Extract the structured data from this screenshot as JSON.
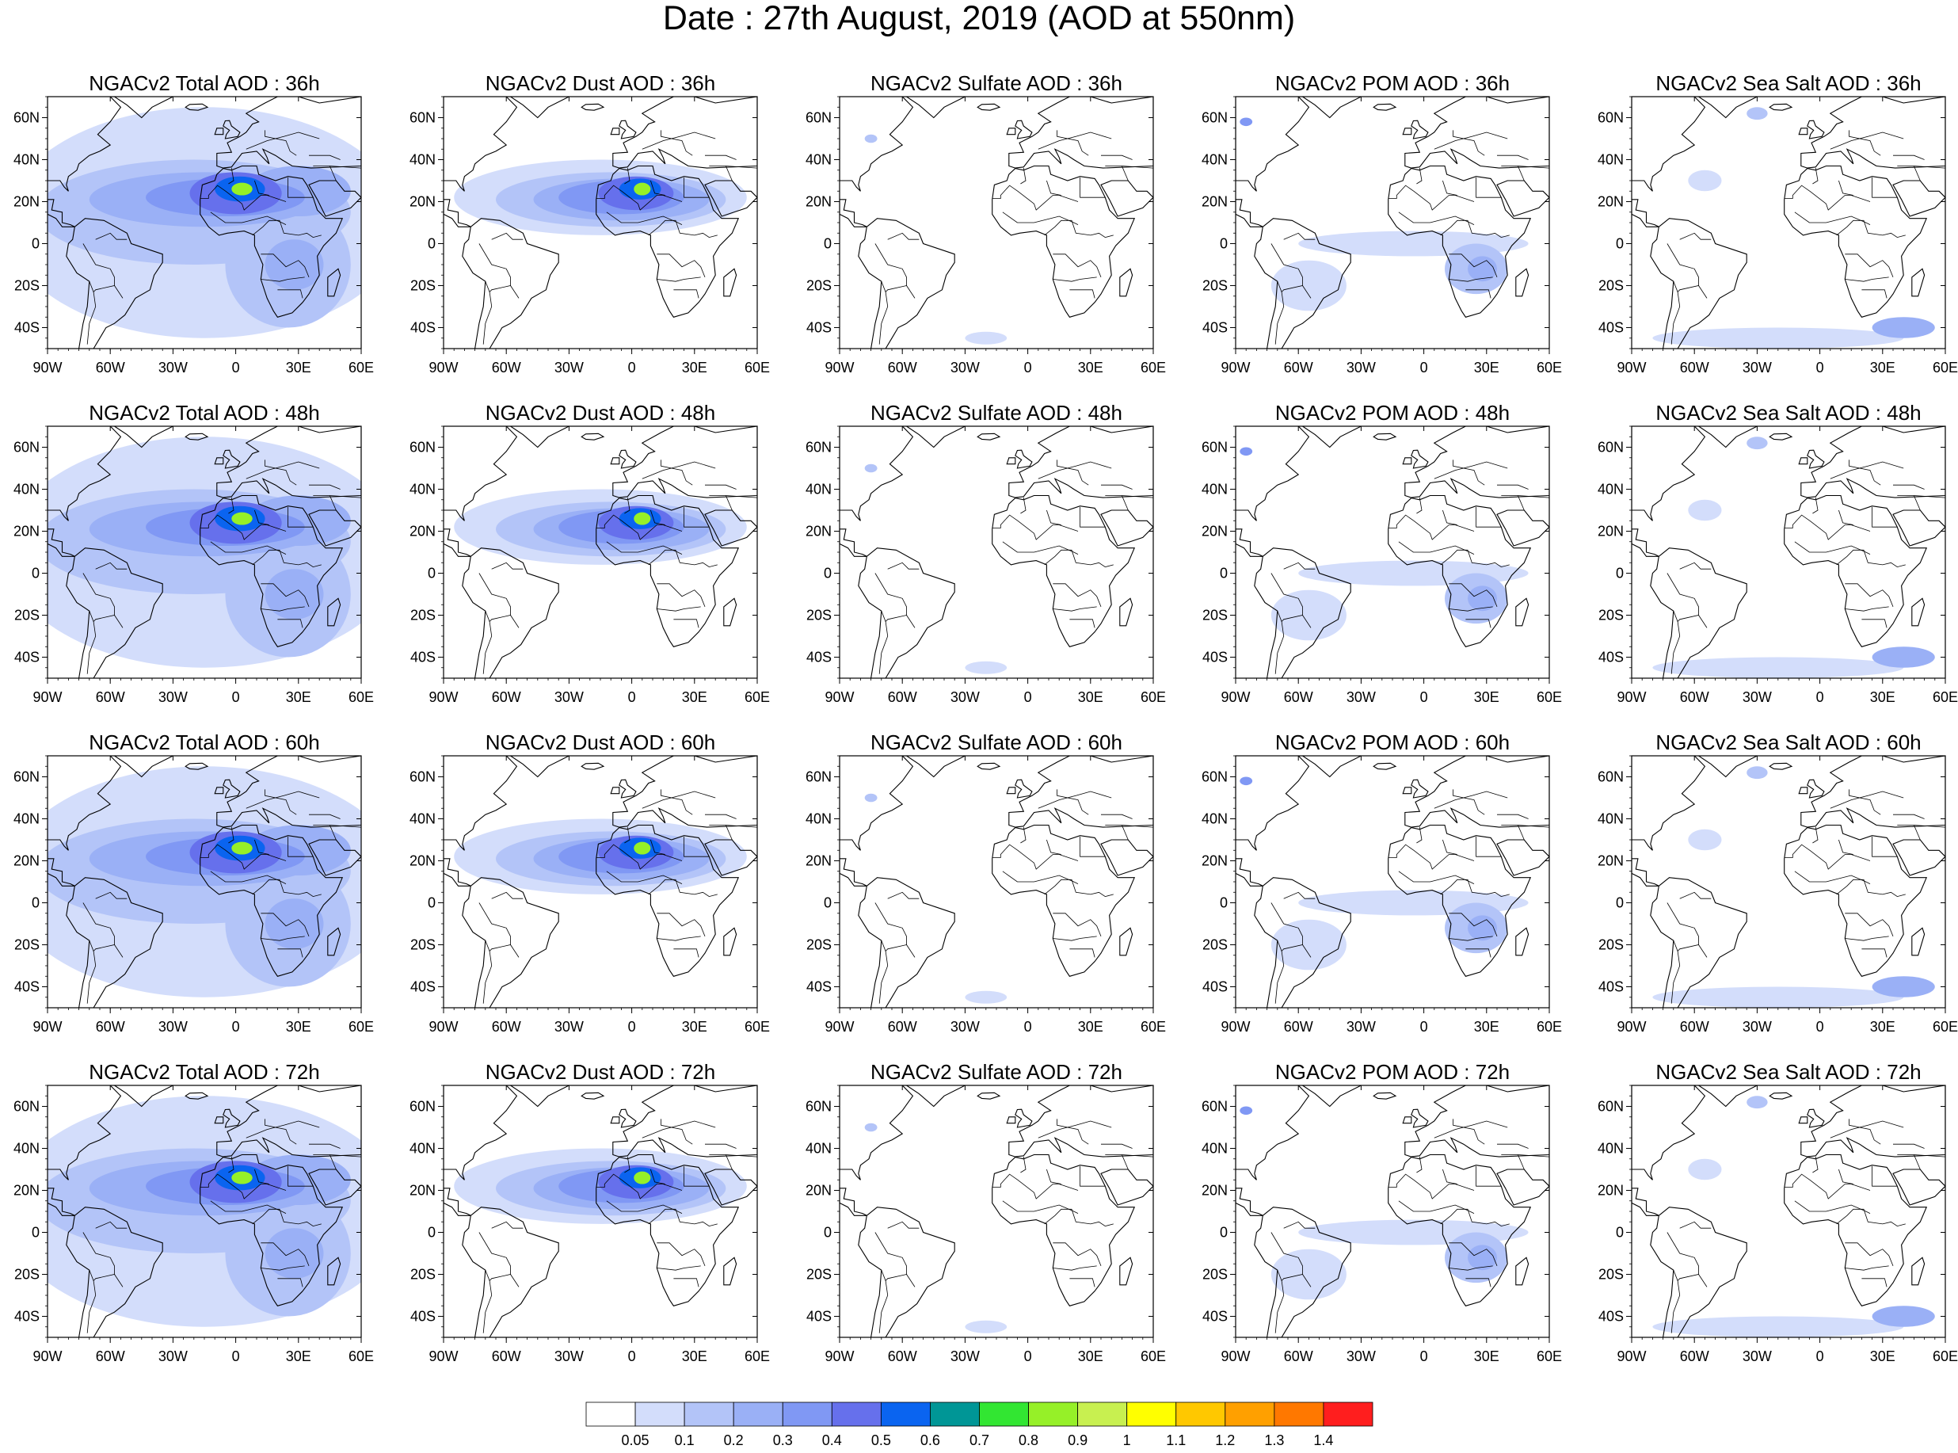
{
  "title": "Date : 27th August, 2019 (AOD at 550nm)",
  "rows": [
    {
      "panels": [
        {
          "title": "NGACv2 Total AOD : 36h",
          "species": "total",
          "lead_h": 36
        },
        {
          "title": "NGACv2 Dust AOD : 36h",
          "species": "dust",
          "lead_h": 36
        },
        {
          "title": "NGACv2 Sulfate AOD : 36h",
          "species": "sulfate",
          "lead_h": 36
        },
        {
          "title": "NGACv2 POM AOD : 36h",
          "species": "pom",
          "lead_h": 36
        },
        {
          "title": "NGACv2 Sea Salt AOD : 36h",
          "species": "seasalt",
          "lead_h": 36
        }
      ]
    },
    {
      "panels": [
        {
          "title": "NGACv2 Total AOD : 48h",
          "species": "total",
          "lead_h": 48
        },
        {
          "title": "NGACv2 Dust AOD : 48h",
          "species": "dust",
          "lead_h": 48
        },
        {
          "title": "NGACv2 Sulfate AOD : 48h",
          "species": "sulfate",
          "lead_h": 48
        },
        {
          "title": "NGACv2 POM AOD : 48h",
          "species": "pom",
          "lead_h": 48
        },
        {
          "title": "NGACv2 Sea Salt AOD : 48h",
          "species": "seasalt",
          "lead_h": 48
        }
      ]
    },
    {
      "panels": [
        {
          "title": "NGACv2 Total AOD : 60h",
          "species": "total",
          "lead_h": 60
        },
        {
          "title": "NGACv2 Dust AOD : 60h",
          "species": "dust",
          "lead_h": 60
        },
        {
          "title": "NGACv2 Sulfate AOD : 60h",
          "species": "sulfate",
          "lead_h": 60
        },
        {
          "title": "NGACv2 POM AOD : 60h",
          "species": "pom",
          "lead_h": 60
        },
        {
          "title": "NGACv2 Sea Salt AOD : 60h",
          "species": "seasalt",
          "lead_h": 60
        }
      ]
    },
    {
      "panels": [
        {
          "title": "NGACv2 Total AOD : 72h",
          "species": "total",
          "lead_h": 72
        },
        {
          "title": "NGACv2 Dust AOD : 72h",
          "species": "dust",
          "lead_h": 72
        },
        {
          "title": "NGACv2 Sulfate AOD : 72h",
          "species": "sulfate",
          "lead_h": 72
        },
        {
          "title": "NGACv2 POM AOD : 72h",
          "species": "pom",
          "lead_h": 72
        },
        {
          "title": "NGACv2 Sea Salt  AOD : 72h",
          "species": "seasalt",
          "lead_h": 72
        }
      ]
    }
  ],
  "map_extent": {
    "lon": [
      -90,
      60
    ],
    "lat": [
      -50,
      70
    ]
  },
  "lon_ticks": [
    {
      "v": -90,
      "label": "90W"
    },
    {
      "v": -60,
      "label": "60W"
    },
    {
      "v": -30,
      "label": "30W"
    },
    {
      "v": 0,
      "label": "0"
    },
    {
      "v": 30,
      "label": "30E"
    },
    {
      "v": 60,
      "label": "60E"
    }
  ],
  "lat_ticks": [
    {
      "v": 60,
      "label": "60N"
    },
    {
      "v": 40,
      "label": "40N"
    },
    {
      "v": 20,
      "label": "20N"
    },
    {
      "v": 0,
      "label": "0"
    },
    {
      "v": -20,
      "label": "20S"
    },
    {
      "v": -40,
      "label": "40S"
    }
  ],
  "colorbar": {
    "levels": [
      "0.05",
      "0.1",
      "0.2",
      "0.3",
      "0.4",
      "0.5",
      "0.6",
      "0.7",
      "0.8",
      "0.9",
      "1",
      "1.1",
      "1.2",
      "1.3",
      "1.4"
    ],
    "colors": [
      "#ffffff",
      "#d3ddfb",
      "#b3c4f8",
      "#9ab0f6",
      "#8098f4",
      "#6670ec",
      "#0a64f0",
      "#009696",
      "#32e632",
      "#96f028",
      "#c8f050",
      "#ffff00",
      "#ffc800",
      "#ffa000",
      "#ff7800",
      "#ff1e1e"
    ]
  },
  "fields": {
    "total": {
      "shown_levels": [
        "0.05",
        "0.1",
        "0.2",
        "0.3",
        "0.4",
        "0.5",
        "0.8",
        "0.9"
      ]
    },
    "dust": {
      "shown_levels": [
        "0.05",
        "0.1",
        "0.2",
        "0.3",
        "0.4",
        "0.5",
        "0.8",
        "0.9"
      ]
    },
    "sulfate": {
      "shown_levels": [
        "0.05",
        "0.1"
      ]
    },
    "pom": {
      "shown_levels": [
        "0.05",
        "0.1",
        "0.2",
        "0.3"
      ]
    },
    "seasalt": {
      "shown_levels": [
        "0.05",
        "0.1",
        "0.2",
        "0.3"
      ]
    }
  }
}
